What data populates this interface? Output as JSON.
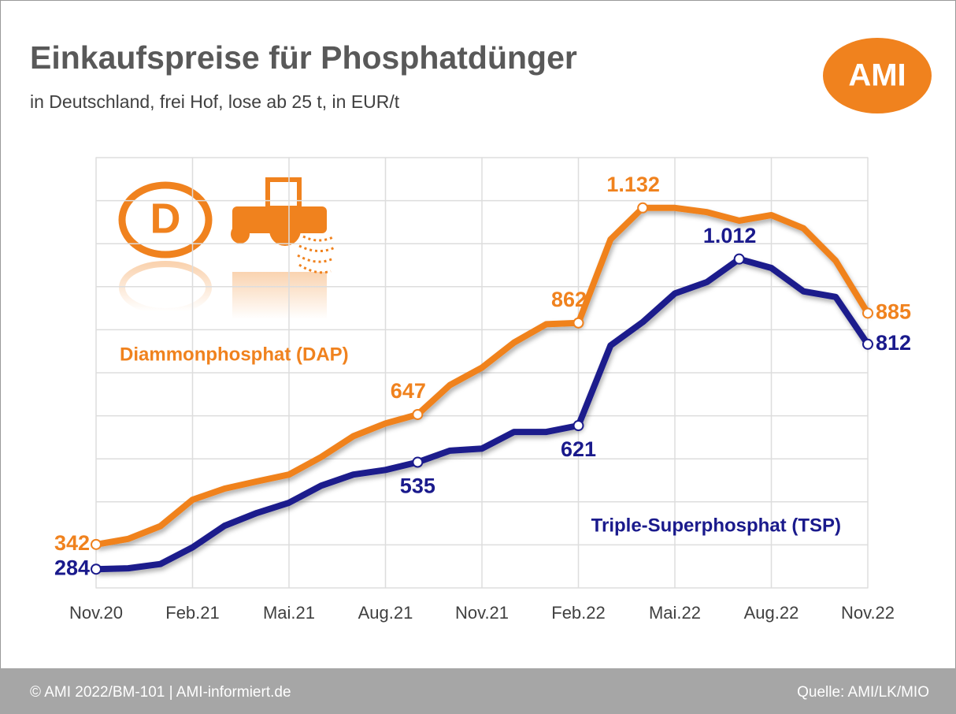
{
  "chart_data": {
    "type": "line",
    "title": "Einkaufspreise für Phosphatdünger",
    "subtitle": "in Deutschland, frei Hof, lose ab 25 t, in EUR/t",
    "logo": "AMI",
    "icon_text": "D",
    "footer_left": "© AMI 2022/BM-101 | AMI-informiert.de",
    "footer_right": "Quelle: AMI/LK/MIO",
    "categories": [
      "Nov.20",
      null,
      null,
      "Feb.21",
      null,
      null,
      "Mai.21",
      null,
      null,
      "Aug.21",
      null,
      null,
      "Nov.21",
      null,
      null,
      "Feb.22",
      null,
      null,
      "Mai.22",
      null,
      null,
      "Aug.22",
      null,
      null,
      "Nov.22"
    ],
    "ylim": [
      240,
      1250
    ],
    "series": [
      {
        "name": "Diammonphosphat (DAP)",
        "color": "#f0821e",
        "values": [
          342,
          355,
          385,
          447,
          473,
          490,
          506,
          547,
          596,
          626,
          647,
          716,
          757,
          816,
          859,
          862,
          1058,
          1132,
          1132,
          1122,
          1102,
          1115,
          1084,
          1008,
          885
        ],
        "value_labels": [
          "342",
          null,
          null,
          null,
          null,
          null,
          null,
          null,
          null,
          null,
          "647",
          null,
          null,
          null,
          null,
          "862",
          null,
          "1.132",
          null,
          null,
          null,
          null,
          null,
          null,
          "885"
        ]
      },
      {
        "name": "Triple-Superphosphat (TSP)",
        "color": "#1a1a8c",
        "values": [
          284,
          286,
          296,
          335,
          386,
          416,
          440,
          480,
          506,
          517,
          535,
          562,
          567,
          606,
          606,
          621,
          809,
          864,
          931,
          958,
          1012,
          991,
          936,
          923,
          812
        ],
        "value_labels": [
          "284",
          null,
          null,
          null,
          null,
          null,
          null,
          null,
          null,
          null,
          "535",
          null,
          null,
          null,
          null,
          "621",
          null,
          null,
          null,
          null,
          "1.012",
          null,
          null,
          null,
          "812"
        ]
      }
    ]
  }
}
